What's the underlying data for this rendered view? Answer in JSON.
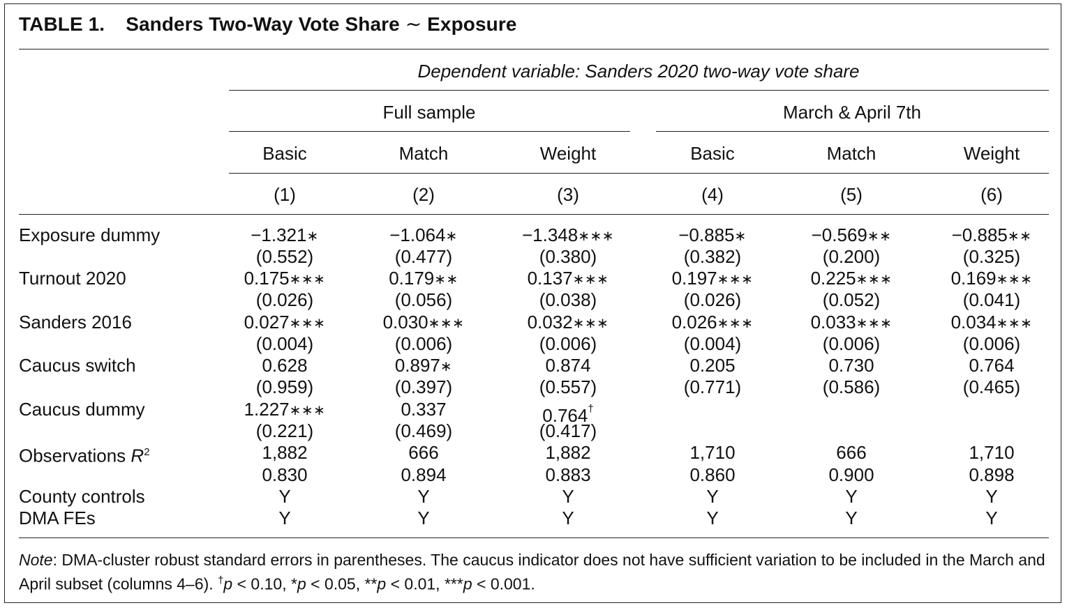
{
  "table": {
    "label": "TABLE 1.",
    "title_pre": "Sanders Two-Way Vote Share",
    "title_tilde": "∼",
    "title_post": "Exposure",
    "dependent_variable": "Dependent variable: Sanders 2020 two-way vote share",
    "groups": [
      "Full sample",
      "March & April 7th"
    ],
    "columns": [
      "Basic",
      "Match",
      "Weight",
      "Basic",
      "Match",
      "Weight"
    ],
    "column_numbers": [
      "(1)",
      "(2)",
      "(3)",
      "(4)",
      "(5)",
      "(6)"
    ],
    "rows": [
      {
        "label": "Exposure dummy",
        "values": [
          {
            "v": "−1.321",
            "s": "∗"
          },
          {
            "v": "−1.064",
            "s": "∗"
          },
          {
            "v": "−1.348",
            "s": "∗∗∗"
          },
          {
            "v": "−0.885",
            "s": "∗"
          },
          {
            "v": "−0.569",
            "s": "∗∗"
          },
          {
            "v": "−0.885",
            "s": "∗∗"
          }
        ],
        "se": [
          "(0.552)",
          "(0.477)",
          "(0.380)",
          "(0.382)",
          "(0.200)",
          "(0.325)"
        ]
      },
      {
        "label": "Turnout 2020",
        "values": [
          {
            "v": "0.175",
            "s": "∗∗∗"
          },
          {
            "v": "0.179",
            "s": "∗∗"
          },
          {
            "v": "0.137",
            "s": "∗∗∗"
          },
          {
            "v": "0.197",
            "s": "∗∗∗"
          },
          {
            "v": "0.225",
            "s": "∗∗∗"
          },
          {
            "v": "0.169",
            "s": "∗∗∗"
          }
        ],
        "se": [
          "(0.026)",
          "(0.056)",
          "(0.038)",
          "(0.026)",
          "(0.052)",
          "(0.041)"
        ]
      },
      {
        "label": "Sanders 2016",
        "values": [
          {
            "v": "0.027",
            "s": "∗∗∗"
          },
          {
            "v": "0.030",
            "s": "∗∗∗"
          },
          {
            "v": "0.032",
            "s": "∗∗∗"
          },
          {
            "v": "0.026",
            "s": "∗∗∗"
          },
          {
            "v": "0.033",
            "s": "∗∗∗"
          },
          {
            "v": "0.034",
            "s": "∗∗∗"
          }
        ],
        "se": [
          "(0.004)",
          "(0.006)",
          "(0.006)",
          "(0.004)",
          "(0.006)",
          "(0.006)"
        ]
      },
      {
        "label": "Caucus switch",
        "values": [
          {
            "v": "0.628",
            "s": ""
          },
          {
            "v": "0.897",
            "s": "∗"
          },
          {
            "v": "0.874",
            "s": ""
          },
          {
            "v": "0.205",
            "s": ""
          },
          {
            "v": "0.730",
            "s": ""
          },
          {
            "v": "0.764",
            "s": ""
          }
        ],
        "se": [
          "(0.959)",
          "(0.397)",
          "(0.557)",
          "(0.771)",
          "(0.586)",
          "(0.465)"
        ]
      },
      {
        "label": "Caucus dummy",
        "values": [
          {
            "v": "1.227",
            "s": "∗∗∗"
          },
          {
            "v": "0.337",
            "s": ""
          },
          {
            "v": "0.764",
            "s": "",
            "d": "†"
          },
          {
            "v": "",
            "s": ""
          },
          {
            "v": "",
            "s": ""
          },
          {
            "v": "",
            "s": ""
          }
        ],
        "se": [
          "(0.221)",
          "(0.469)",
          "(0.417)",
          "",
          "",
          ""
        ]
      }
    ],
    "observations_label": "Observations",
    "r2_label": "R",
    "r2_sup": "2",
    "observations": [
      "1,882",
      "666",
      "1,882",
      "1,710",
      "666",
      "1,710"
    ],
    "r2": [
      "0.830",
      "0.894",
      "0.883",
      "0.860",
      "0.900",
      "0.898"
    ],
    "county_controls_label": "County controls",
    "county_controls": [
      "Y",
      "Y",
      "Y",
      "Y",
      "Y",
      "Y"
    ],
    "dma_label": "DMA FEs",
    "dma": [
      "Y",
      "Y",
      "Y",
      "Y",
      "Y",
      "Y"
    ],
    "note": {
      "label": "Note",
      "text1": ": DMA-cluster robust standard errors in parentheses. The caucus indicator does not have sufficient variation to be included in the March and April subset (columns 4–6). ",
      "dagger": "†",
      "p": "p",
      "sig1": " < 0.10, *",
      "sig2": " < 0.05, **",
      "sig3": " < 0.01, ***",
      "sig4": " < 0.001."
    }
  }
}
